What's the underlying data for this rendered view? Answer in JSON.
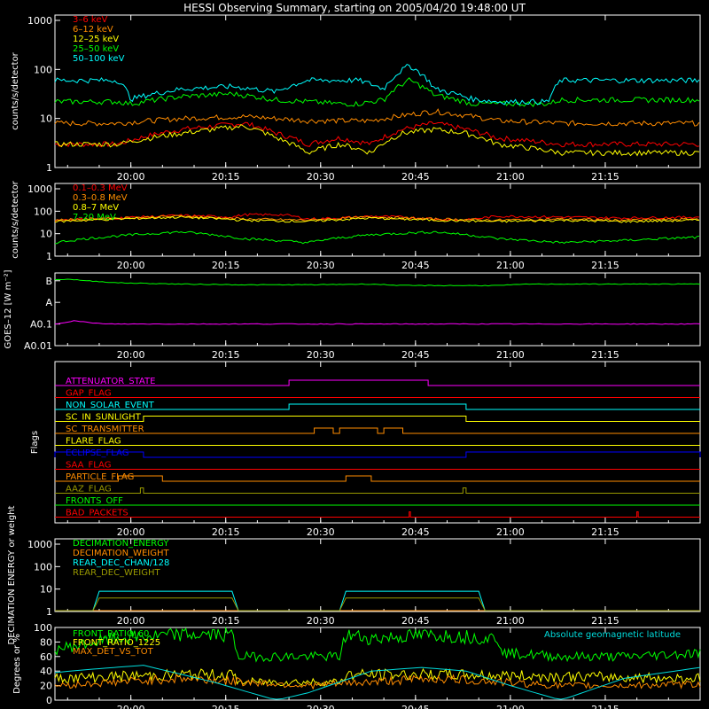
{
  "title": "HESSI Observing Summary, starting on 2005/04/20 19:48:00 UT",
  "time_ticks": [
    "20:00",
    "20:15",
    "20:30",
    "20:45",
    "21:00",
    "21:15"
  ],
  "chart_data": [
    {
      "type": "line",
      "ylabel": "counts/s/detector",
      "ylim": [
        1,
        1000
      ],
      "yscale": "log",
      "yticks": [
        "1",
        "10",
        "100",
        "1000"
      ],
      "x_range_minutes": [
        0,
        102
      ],
      "series": [
        {
          "name": "3–6 keV",
          "color": "#ff0000",
          "x": [
            0,
            10,
            20,
            30,
            35,
            40,
            45,
            50,
            55,
            60,
            65,
            70,
            80,
            90,
            102
          ],
          "values": [
            3,
            3,
            6,
            8,
            5,
            3,
            4,
            3,
            6,
            8,
            6,
            4,
            3,
            3,
            3
          ]
        },
        {
          "name": "6–12 keV",
          "color": "#ff8c00",
          "x": [
            0,
            10,
            20,
            30,
            40,
            50,
            60,
            70,
            80,
            90,
            102
          ],
          "values": [
            8,
            8,
            10,
            11,
            9,
            9,
            14,
            9,
            8,
            8,
            8
          ]
        },
        {
          "name": "12–25 keV",
          "color": "#ffff00",
          "x": [
            0,
            10,
            20,
            30,
            35,
            40,
            45,
            50,
            55,
            60,
            65,
            70,
            80,
            90,
            102
          ],
          "values": [
            3,
            3,
            5,
            7,
            4,
            2,
            3,
            2,
            5,
            6,
            5,
            3,
            2,
            2,
            2
          ]
        },
        {
          "name": "25–50 keV",
          "color": "#00ff00",
          "x": [
            0,
            10,
            12,
            20,
            28,
            35,
            40,
            45,
            48,
            52,
            56,
            60,
            66,
            70,
            78,
            80,
            90,
            102
          ],
          "values": [
            22,
            22,
            20,
            28,
            32,
            24,
            22,
            20,
            20,
            24,
            60,
            30,
            20,
            20,
            20,
            24,
            24,
            24
          ]
        },
        {
          "name": "50–100 keV",
          "color": "#00ffff",
          "x": [
            0,
            10,
            12,
            20,
            28,
            35,
            40,
            45,
            48,
            52,
            56,
            60,
            66,
            70,
            78,
            80,
            90,
            102
          ],
          "values": [
            60,
            60,
            25,
            40,
            45,
            35,
            60,
            60,
            60,
            40,
            120,
            40,
            25,
            22,
            22,
            60,
            60,
            60
          ]
        }
      ]
    },
    {
      "type": "line",
      "ylabel": "counts/s/detector",
      "ylim": [
        1,
        1000
      ],
      "yscale": "log",
      "yticks": [
        "1",
        "10",
        "100",
        "1000"
      ],
      "x_range_minutes": [
        0,
        102
      ],
      "series": [
        {
          "name": "0.1–0.3 MeV",
          "color": "#ff0000",
          "x": [
            0,
            10,
            20,
            28,
            30,
            36,
            40,
            45,
            50,
            55,
            60,
            65,
            70,
            80,
            90,
            102
          ],
          "values": [
            40,
            50,
            65,
            55,
            70,
            70,
            45,
            50,
            60,
            55,
            45,
            40,
            60,
            55,
            50,
            55
          ]
        },
        {
          "name": "0.3–0.8 MeV",
          "color": "#ff8c00",
          "x": [
            0,
            10,
            20,
            30,
            40,
            50,
            60,
            70,
            80,
            90,
            102
          ],
          "values": [
            40,
            50,
            60,
            45,
            40,
            55,
            45,
            40,
            45,
            40,
            45
          ]
        },
        {
          "name": "0.8–7 MeV",
          "color": "#ffff00",
          "x": [
            0,
            10,
            20,
            30,
            40,
            50,
            60,
            70,
            80,
            90,
            102
          ],
          "values": [
            35,
            45,
            55,
            40,
            35,
            50,
            40,
            35,
            40,
            35,
            40
          ]
        },
        {
          "name": "7–20 MeV",
          "color": "#00ff00",
          "x": [
            0,
            10,
            20,
            30,
            40,
            50,
            60,
            70,
            80,
            90,
            102
          ],
          "values": [
            4,
            8,
            12,
            6,
            4,
            9,
            12,
            6,
            4,
            5,
            7
          ]
        }
      ]
    },
    {
      "type": "line",
      "ylabel": "GOES–12 [W m⁻²]",
      "yticks": [
        "B",
        "A",
        "A0.1",
        "A0.01"
      ],
      "yscale": "log",
      "x_range_minutes": [
        0,
        102
      ],
      "series": [
        {
          "name": "long",
          "color": "#00ff00",
          "x": [
            0,
            2,
            5,
            10,
            20,
            30,
            40,
            50,
            55,
            60,
            70,
            75,
            80,
            90,
            102
          ],
          "values": [
            1.1e-07,
            1.2e-07,
            1e-07,
            8e-08,
            7e-08,
            6.5e-08,
            6.5e-08,
            7e-08,
            6e-08,
            6e-08,
            6e-08,
            7e-08,
            7e-08,
            7e-08,
            7e-08
          ]
        },
        {
          "name": "short",
          "color": "#ff00ff",
          "x": [
            0,
            3,
            5,
            8,
            20,
            40,
            60,
            80,
            102
          ],
          "values": [
            1e-09,
            1.4e-09,
            1.2e-09,
            1e-09,
            1e-09,
            1e-09,
            1e-09,
            1e-09,
            1e-09
          ]
        }
      ]
    },
    {
      "type": "line",
      "ylabel": "Flags",
      "x_range_minutes": [
        0,
        102
      ],
      "flags": [
        {
          "name": "ATTENUATOR_STATE",
          "color": "#ff00ff",
          "on": [
            [
              37,
              59
            ]
          ]
        },
        {
          "name": "GAP_FLAG",
          "color": "#ff0000",
          "on": []
        },
        {
          "name": "NON_SOLAR_EVENT",
          "color": "#00ffff",
          "on": [
            [
              37,
              65
            ]
          ]
        },
        {
          "name": "SC_IN_SUNLIGHT",
          "color": "#ffff00",
          "on": [
            [
              14,
              65
            ]
          ]
        },
        {
          "name": "SC_TRANSMITTER",
          "color": "#ff8c00",
          "on": [
            [
              41,
              44
            ],
            [
              45,
              51
            ],
            [
              52,
              55
            ]
          ]
        },
        {
          "name": "FLARE_FLAG",
          "color": "#ffff00",
          "on": []
        },
        {
          "name": "ECLIPSE_FLAG",
          "color": "#0000ff",
          "on": [
            [
              0,
              14
            ],
            [
              65,
              102
            ]
          ]
        },
        {
          "name": "SAA_FLAG",
          "color": "#ff0000",
          "on": []
        },
        {
          "name": "PARTICLE_FLAG",
          "color": "#ff8c00",
          "on": [
            [
              10,
              17
            ],
            [
              46,
              50
            ]
          ]
        },
        {
          "name": "AAZ_FLAG",
          "color": "#999900",
          "on": [
            [
              13.5,
              14
            ],
            [
              64.5,
              65
            ]
          ]
        },
        {
          "name": "FRONTS_OFF",
          "color": "#00ff00",
          "on": []
        },
        {
          "name": "BAD_PACKETS",
          "color": "#ff0000",
          "on": [
            [
              56,
              56.2
            ],
            [
              92,
              92.2
            ]
          ]
        }
      ]
    },
    {
      "type": "line",
      "ylabel": "DECIMATION ENERGY or weight",
      "ylim": [
        1,
        1000
      ],
      "yscale": "log",
      "yticks": [
        "1",
        "10",
        "100",
        "1000"
      ],
      "x_range_minutes": [
        0,
        102
      ],
      "series": [
        {
          "name": "DECIMATION_ENERGY",
          "color": "#00ff00",
          "x": [
            0,
            102
          ],
          "values": [
            1,
            1
          ]
        },
        {
          "name": "DECIMATION_WEIGHT",
          "color": "#ff8c00",
          "x": [
            0,
            102
          ],
          "values": [
            1,
            1
          ]
        },
        {
          "name": "REAR_DEC_CHAN/128",
          "color": "#00ffff",
          "x": [
            0,
            6,
            6,
            28,
            28,
            45,
            45,
            67,
            67,
            102
          ],
          "values": [
            1,
            1,
            8,
            8,
            1,
            1,
            8,
            8,
            1,
            1
          ]
        },
        {
          "name": "REAR_DEC_WEIGHT",
          "color": "#999900",
          "x": [
            0,
            6,
            6,
            28,
            28,
            45,
            45,
            67,
            67,
            102
          ],
          "values": [
            1,
            1,
            4,
            4,
            1,
            1,
            4,
            4,
            1,
            1
          ]
        }
      ]
    },
    {
      "type": "line",
      "ylabel": "Degrees or %",
      "ylim": [
        0,
        100
      ],
      "yticks": [
        "0",
        "20",
        "40",
        "60",
        "80",
        "100"
      ],
      "x_range_minutes": [
        0,
        102
      ],
      "annotation": "Absolute geomagnetic latitude",
      "series": [
        {
          "name": "FRONT_RATIO_60",
          "color": "#00ff00",
          "x": [
            0,
            10,
            20,
            28,
            29,
            45,
            46,
            50,
            60,
            70,
            71,
            80,
            90,
            102
          ],
          "values": [
            70,
            85,
            90,
            90,
            60,
            60,
            90,
            85,
            90,
            85,
            65,
            60,
            60,
            65
          ]
        },
        {
          "name": "FRONT_RATIO_1225",
          "color": "#ffff00",
          "x": [
            0,
            20,
            28,
            29,
            45,
            46,
            60,
            102
          ],
          "values": [
            30,
            35,
            35,
            25,
            25,
            35,
            35,
            30
          ]
        },
        {
          "name": "MAX_DET_VS_TOT",
          "color": "#ff8c00",
          "x": [
            0,
            10,
            20,
            30,
            40,
            50,
            60,
            70,
            80,
            90,
            102
          ],
          "values": [
            20,
            25,
            30,
            25,
            20,
            25,
            30,
            25,
            20,
            20,
            22
          ]
        },
        {
          "name": "Absolute geomagnetic latitude",
          "color": "#00dddd",
          "x": [
            0,
            5,
            14,
            25,
            35,
            40,
            50,
            58,
            65,
            72,
            80,
            90,
            102
          ],
          "values": [
            38,
            42,
            48,
            25,
            0,
            10,
            40,
            45,
            40,
            20,
            0,
            30,
            45
          ]
        }
      ]
    }
  ]
}
